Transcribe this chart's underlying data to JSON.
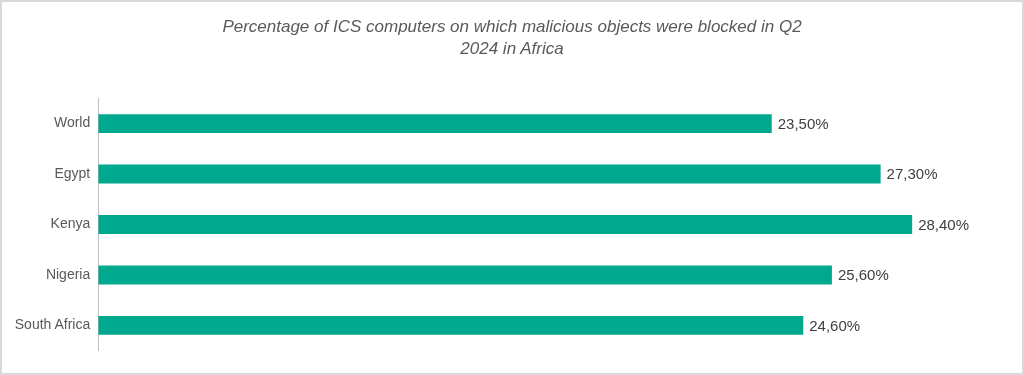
{
  "chart_data": {
    "type": "bar",
    "orientation": "horizontal",
    "title": "Percentage of ICS computers on which malicious objects were blocked in Q2 2024 in Africa",
    "categories": [
      "World",
      "Egypt",
      "Kenya",
      "Nigeria",
      "South Africa"
    ],
    "values": [
      23.5,
      27.3,
      28.4,
      25.6,
      24.6
    ],
    "value_labels": [
      "23,50%",
      "27,30%",
      "28,40%",
      "25,60%",
      "24,60%"
    ],
    "color": "#00a88e"
  }
}
